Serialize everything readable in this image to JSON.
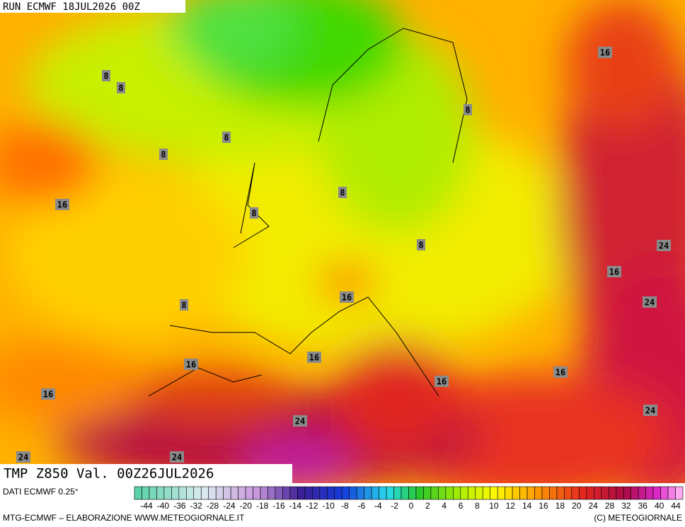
{
  "header": {
    "run": "RUN ECMWF 18JUL2026 00Z"
  },
  "map": {
    "title": "TMP Z850 Val. 00Z26JUL2026",
    "contour_labels": [
      "8",
      "8",
      "8",
      "8",
      "8",
      "8",
      "8",
      "8",
      "8",
      "16",
      "16",
      "16",
      "16",
      "16",
      "16",
      "16",
      "16",
      "16",
      "24",
      "24",
      "24",
      "24",
      "24",
      "24"
    ]
  },
  "legend": {
    "source": "DATI ECMWF 0.25°",
    "ticks": [
      "-44",
      "-40",
      "-36",
      "-32",
      "-28",
      "-24",
      "-20",
      "-18",
      "-16",
      "-14",
      "-12",
      "-10",
      "-8",
      "-6",
      "-4",
      "-2",
      "0",
      "2",
      "4",
      "6",
      "8",
      "10",
      "12",
      "14",
      "16",
      "18",
      "20",
      "24",
      "28",
      "32",
      "36",
      "40",
      "44"
    ]
  },
  "footer": {
    "left": "MTG-ECMWF – ELABORAZIONE WWW.METEOGIORNALE.IT",
    "right": "(C) METEOGIORNALE"
  }
}
